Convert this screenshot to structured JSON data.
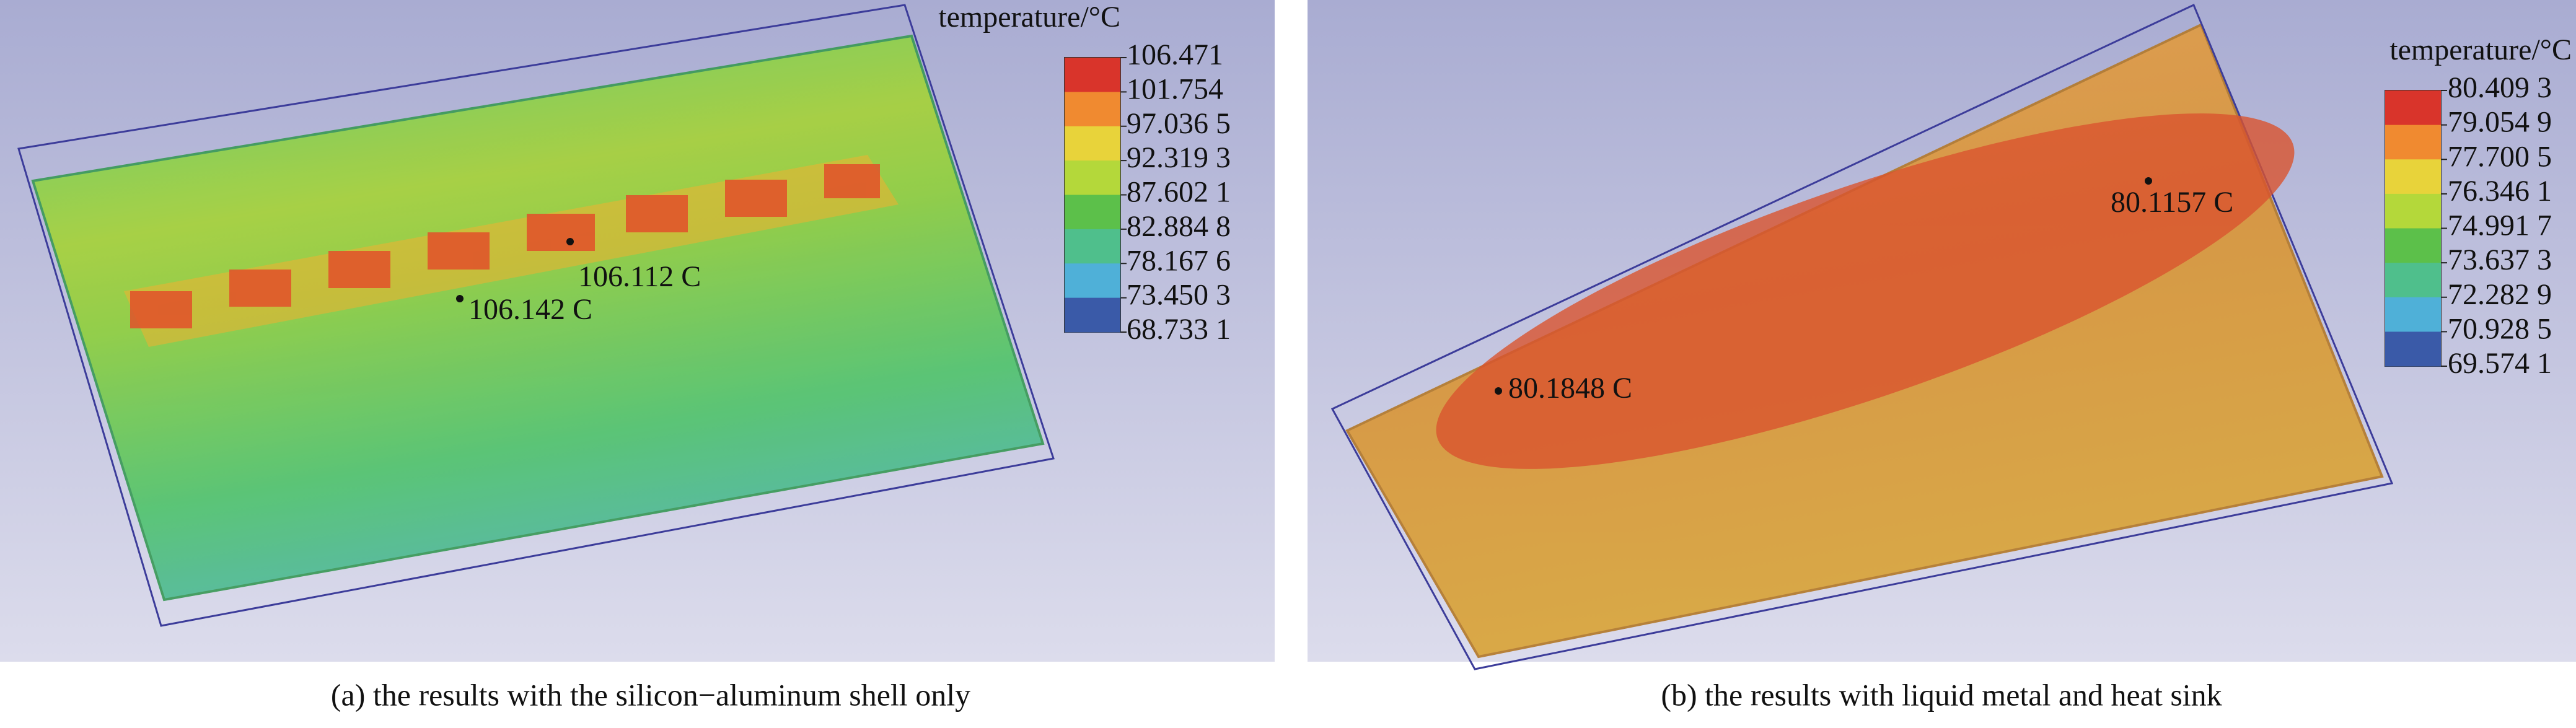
{
  "panels": [
    {
      "legend_title": "temperature/°C",
      "legend_labels": [
        "106.471",
        "101.754",
        "97.036 5",
        "92.319 3",
        "87.602 1",
        "82.884 8",
        "78.167 6",
        "73.450 3",
        "68.733 1"
      ],
      "annotations": [
        "106.142 C",
        "106.112 C"
      ],
      "caption": "(a) the results with the silicon−aluminum shell only"
    },
    {
      "legend_title": "temperature/°C",
      "legend_labels": [
        "80.409 3",
        "79.054 9",
        "77.700 5",
        "76.346 1",
        "74.991 7",
        "73.637 3",
        "72.282 9",
        "70.928 5",
        "69.574 1"
      ],
      "annotations": [
        "80.1848 C",
        "80.1157 C"
      ],
      "caption": "(b) the results with liquid metal and heat sink"
    }
  ]
}
